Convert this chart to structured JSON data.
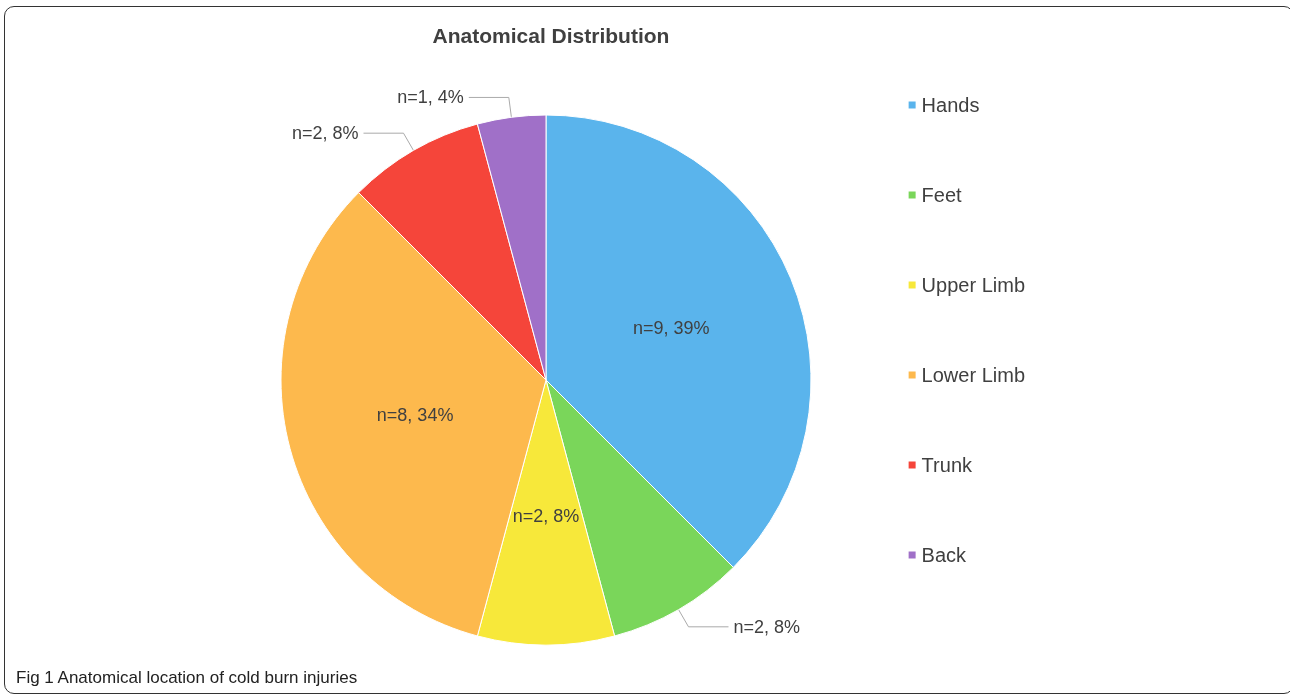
{
  "chart_data": {
    "type": "pie",
    "title": "Anatomical Distribution",
    "categories": [
      "Hands",
      "Feet",
      "Upper Limb",
      "Lower Limb",
      "Trunk",
      "Back"
    ],
    "values": [
      9,
      2,
      2,
      8,
      2,
      1
    ],
    "value_labels": [
      "n=9, 39%",
      "n=2, 8%",
      "n=2, 8%",
      "n=8, 34%",
      "n=2, 8%",
      "n=1, 4%"
    ],
    "colors": [
      "#5ab4ec",
      "#7ad65a",
      "#f7e83a",
      "#fdb94d",
      "#f5453a",
      "#a070c8"
    ],
    "legend": "right",
    "annotations": [
      "Fig 1 Anatomical location of cold burn injuries"
    ]
  }
}
